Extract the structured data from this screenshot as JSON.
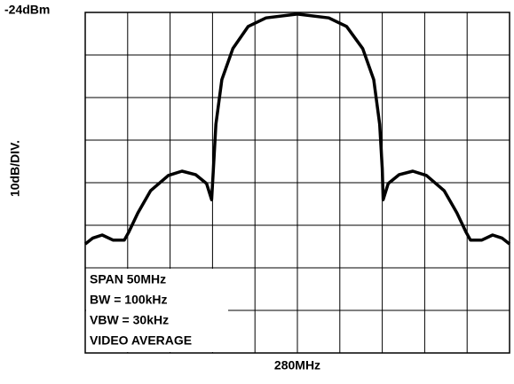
{
  "chart_data": {
    "type": "line",
    "top_label": "-24dBm",
    "y_label": "10dB/DIV.",
    "x_label": "280MHz",
    "annotations": [
      "SPAN 50MHz",
      "BW = 100kHz",
      "VBW = 30kHz",
      "VIDEO AVERAGE"
    ],
    "xlim": [
      255,
      305
    ],
    "ylim": [
      -104,
      -24
    ],
    "xticks": [
      255,
      260,
      265,
      270,
      275,
      280,
      285,
      290,
      295,
      300,
      305
    ],
    "yticks": [
      -104,
      -94,
      -84,
      -74,
      -64,
      -54,
      -44,
      -34,
      -24
    ],
    "grid": true,
    "x": [
      255,
      255.9,
      257,
      258.3,
      259.6,
      260.1,
      261.2,
      262.7,
      264.8,
      266.4,
      268.0,
      269.3,
      269.9,
      270.1,
      270.4,
      271.1,
      272.4,
      274.2,
      276.3,
      280,
      283.7,
      285.8,
      287.7,
      289,
      289.7,
      290,
      290.1,
      290.7,
      292,
      293.6,
      295.2,
      297.3,
      298.8,
      299.9,
      300.4,
      301.7,
      303,
      304.1,
      305
    ],
    "series": [
      {
        "color": "#000000",
        "values": [
          -78.4,
          -77,
          -76.3,
          -77.5,
          -77.5,
          -75.7,
          -71.1,
          -65.9,
          -62.3,
          -61.3,
          -62.1,
          -64.2,
          -68.0,
          -60.7,
          -50.3,
          -39.8,
          -32.5,
          -27.3,
          -25.3,
          -24.4,
          -25.3,
          -27.3,
          -32.5,
          -39.8,
          -50.3,
          -60.7,
          -68.0,
          -64.2,
          -62.1,
          -61.3,
          -62.3,
          -65.9,
          -71.1,
          -75.7,
          -77.5,
          -77.5,
          -76.3,
          -77,
          -78.4
        ]
      }
    ]
  }
}
